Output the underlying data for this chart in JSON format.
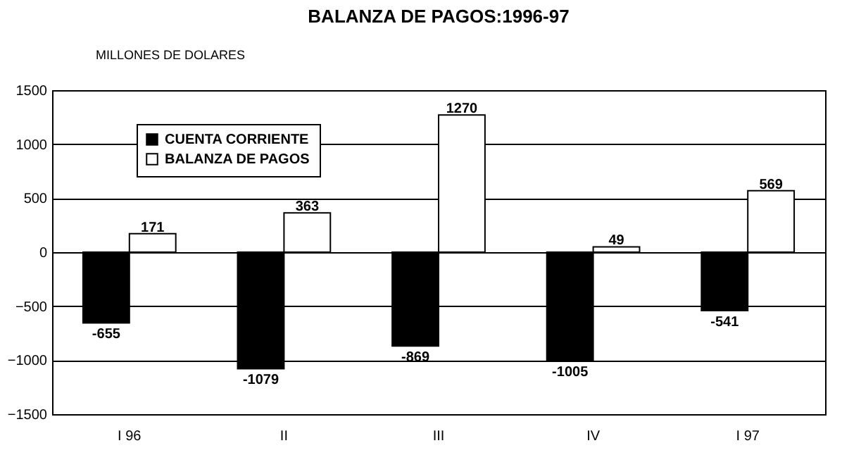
{
  "chart_data": {
    "type": "bar",
    "title": "BALANZA DE PAGOS:1996-97",
    "subtitle": "MILLONES DE DOLARES",
    "categories": [
      "I 96",
      "II",
      "III",
      "IV",
      "I 97"
    ],
    "series": [
      {
        "name": "CUENTA CORRIENTE",
        "color": "#000000",
        "values": [
          -655,
          -1079,
          -869,
          -1005,
          -541
        ]
      },
      {
        "name": "BALANZA DE PAGOS",
        "color": "#ffffff",
        "values": [
          171,
          363,
          1270,
          49,
          569
        ]
      }
    ],
    "ylim": [
      -1500,
      1500
    ],
    "yticks": [
      -1500,
      -1000,
      -500,
      0,
      500,
      1000,
      1500
    ],
    "grid": "y",
    "legend": "top left",
    "data_labels": true
  }
}
